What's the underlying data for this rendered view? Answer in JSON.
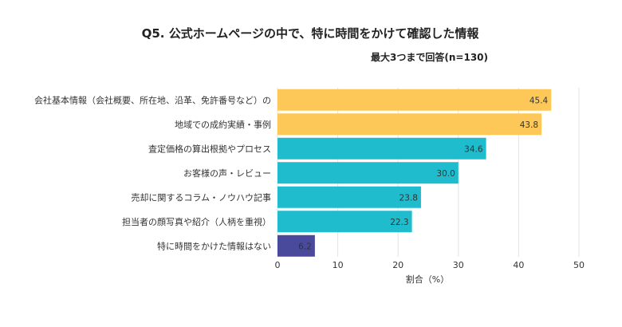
{
  "chart_data": {
    "type": "bar",
    "orientation": "horizontal",
    "title": "Q5. 公式ホームページの中で、特に時間をかけて確認した情報",
    "subtitle": "最大3つまで回答(n=130)",
    "xlabel": "割合（%）",
    "ylabel": "",
    "xlim": [
      0,
      50
    ],
    "xticks": [
      0,
      10,
      20,
      30,
      40,
      50
    ],
    "grid": true,
    "categories": [
      "会社基本情報（会社概要、所在地、沿革、免許番号など）の",
      "地域での成約実績・事例",
      "査定価格の算出根拠やプロセス",
      "お客様の声・レビュー",
      "売却に関するコラム・ノウハウ記事",
      "担当者の顔写真や紹介（人柄を重視）",
      "特に時間をかけた情報はない"
    ],
    "values": [
      45.4,
      43.8,
      34.6,
      30.0,
      23.8,
      22.3,
      6.2
    ],
    "value_labels": [
      "45.4",
      "43.8",
      "34.6",
      "30.0",
      "23.8",
      "22.3",
      "6.2"
    ],
    "bar_colors": [
      "#FDC858",
      "#FDC858",
      "#1EBCCD",
      "#1EBCCD",
      "#1EBCCD",
      "#1EBCCD",
      "#4A4A9C"
    ],
    "value_label_colors": [
      "#333333",
      "#333333",
      "#333333",
      "#333333",
      "#333333",
      "#333333",
      "#ffffff"
    ]
  }
}
